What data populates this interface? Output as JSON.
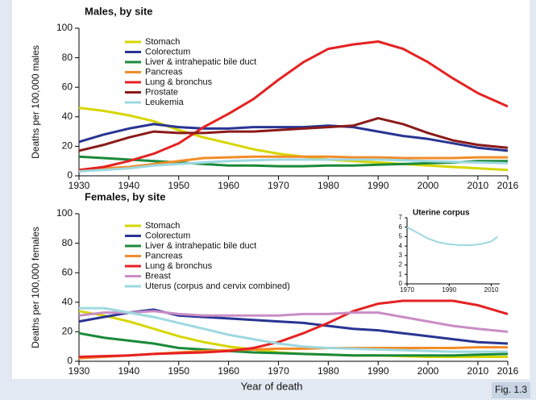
{
  "chart_data": [
    {
      "type": "line",
      "title": "Males, by site",
      "y_label": "Deaths per 100,000 males",
      "x": [
        1930,
        1935,
        1940,
        1945,
        1950,
        1955,
        1960,
        1965,
        1970,
        1975,
        1980,
        1985,
        1990,
        1995,
        2000,
        2005,
        2010,
        2016
      ],
      "xlim": [
        1930,
        2016
      ],
      "xticks": [
        1930,
        1940,
        1950,
        1960,
        1970,
        1980,
        1990,
        2000,
        2010,
        2016
      ],
      "ylim": [
        0,
        100
      ],
      "yticks": [
        0,
        20,
        40,
        60,
        80,
        100
      ],
      "series": [
        {
          "name": "Stomach",
          "color": "#d6d600",
          "values": [
            46,
            44,
            41,
            37,
            31,
            26,
            22,
            18,
            15,
            13,
            11,
            10,
            9,
            8,
            7,
            6,
            5,
            4
          ]
        },
        {
          "name": "Colorectum",
          "color": "#283593",
          "values": [
            23,
            28,
            32,
            35,
            33,
            32,
            32,
            33,
            33,
            33,
            34,
            33,
            30,
            27,
            25,
            22,
            19,
            17
          ]
        },
        {
          "name": "Liver & intrahepatic bile duct",
          "color": "#1a8a3a",
          "values": [
            13,
            12,
            11,
            10,
            9,
            8,
            7,
            7,
            6.5,
            6.5,
            7,
            7,
            7.5,
            8,
            8.5,
            9,
            10,
            10
          ]
        },
        {
          "name": "Pancreas",
          "color": "#f28c28",
          "values": [
            3,
            5,
            6,
            8,
            10,
            12,
            12.5,
            13,
            13,
            13,
            13,
            12.5,
            12.5,
            12,
            12,
            12,
            12.5,
            12.5
          ]
        },
        {
          "name": "Lung & bronchus",
          "color": "#e52222",
          "values": [
            4,
            6,
            10,
            15,
            22,
            33,
            42,
            52,
            65,
            77,
            86,
            89,
            91,
            86,
            77,
            66,
            56,
            47
          ]
        },
        {
          "name": "Prostate",
          "color": "#8b1a1a",
          "values": [
            17,
            21,
            26,
            30,
            29,
            29,
            30,
            30,
            31,
            32,
            33,
            34,
            39,
            35,
            29,
            24,
            21,
            19
          ]
        },
        {
          "name": "Leukemia",
          "color": "#9ed8e0",
          "values": [
            3,
            4,
            5,
            7,
            8,
            9,
            10,
            10.5,
            11,
            11,
            11,
            11,
            11,
            10.5,
            10,
            9.5,
            9,
            8.5
          ]
        }
      ]
    },
    {
      "type": "line",
      "title": "Females, by site",
      "y_label": "Deaths per 100,000 females",
      "x_label": "Year of death",
      "x": [
        1930,
        1935,
        1940,
        1945,
        1950,
        1955,
        1960,
        1965,
        1970,
        1975,
        1980,
        1985,
        1990,
        1995,
        2000,
        2005,
        2010,
        2016
      ],
      "xlim": [
        1930,
        2016
      ],
      "xticks": [
        1930,
        1940,
        1950,
        1960,
        1970,
        1980,
        1990,
        2000,
        2010,
        2016
      ],
      "ylim": [
        0,
        100
      ],
      "yticks": [
        0,
        20,
        40,
        60,
        80,
        100
      ],
      "series": [
        {
          "name": "Stomach",
          "color": "#d6d600",
          "values": [
            34,
            31,
            27,
            22,
            17,
            13,
            10,
            8,
            6,
            5,
            4.5,
            4,
            4,
            3.5,
            3,
            3,
            3,
            3
          ]
        },
        {
          "name": "Colorectum",
          "color": "#283593",
          "values": [
            27,
            30,
            33,
            35,
            31,
            30,
            29,
            28,
            27,
            26,
            24,
            22,
            21,
            19,
            17,
            15,
            13,
            12
          ]
        },
        {
          "name": "Liver & intrahepatic bile duct",
          "color": "#1a8a3a",
          "values": [
            19,
            16,
            14,
            12,
            9,
            8,
            7,
            6,
            5.5,
            5,
            4.5,
            4,
            4,
            4,
            4,
            4,
            4.5,
            5
          ]
        },
        {
          "name": "Pancreas",
          "color": "#f28c28",
          "values": [
            2,
            3,
            4,
            5,
            6,
            7,
            7.5,
            8,
            8.5,
            8.5,
            9,
            9,
            9,
            9,
            9,
            9,
            9.5,
            9.5
          ]
        },
        {
          "name": "Lung & bronchus",
          "color": "#e52222",
          "values": [
            3,
            3.5,
            4,
            5,
            5.5,
            6,
            7,
            9,
            13,
            19,
            26,
            34,
            39,
            41,
            41,
            41,
            38,
            32
          ]
        },
        {
          "name": "Breast",
          "color": "#c98dc5",
          "values": [
            31,
            33,
            33,
            34,
            32,
            31,
            31,
            31,
            31,
            32,
            32,
            33,
            33,
            30,
            27,
            24,
            22,
            20
          ]
        },
        {
          "name": "Uterus (corpus and cervix combined)",
          "color": "#9ed8e0",
          "values": [
            36,
            36,
            33,
            30,
            26,
            22,
            18,
            15,
            12,
            10,
            9,
            8.5,
            8,
            7.5,
            7,
            6.5,
            6.5,
            6.5
          ]
        }
      ]
    },
    {
      "type": "line",
      "title": "Uterine corpus",
      "x": [
        1970,
        1975,
        1980,
        1985,
        1990,
        1995,
        2000,
        2005,
        2010,
        2013
      ],
      "xlim": [
        1970,
        2014
      ],
      "xticks": [
        1970,
        1990,
        2010
      ],
      "ylim": [
        0,
        7
      ],
      "yticks": [
        0,
        1,
        2,
        3,
        4,
        5,
        6,
        7
      ],
      "series": [
        {
          "color": "#9ed8e0",
          "values": [
            6,
            5.4,
            4.8,
            4.4,
            4.2,
            4.1,
            4.1,
            4.2,
            4.5,
            5
          ]
        }
      ]
    }
  ],
  "figure_label": "Fig. 1.3"
}
